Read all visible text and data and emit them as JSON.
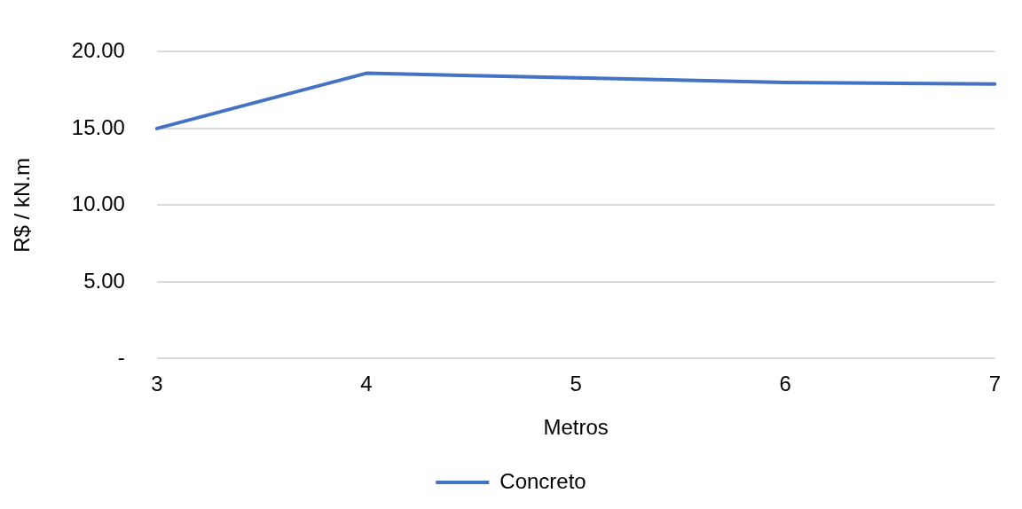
{
  "chart_data": {
    "type": "line",
    "xlabel": "Metros",
    "ylabel": "R$ / kN.m",
    "categories": [
      "3",
      "4",
      "5",
      "6",
      "7"
    ],
    "series": [
      {
        "name": "Concreto",
        "color": "#4472c4",
        "values": [
          15.0,
          18.6,
          18.3,
          18.0,
          17.9
        ]
      }
    ],
    "ylim": [
      0,
      20
    ],
    "yticks": [
      {
        "value": 0,
        "label": "-"
      },
      {
        "value": 5,
        "label": "5.00"
      },
      {
        "value": 10,
        "label": "10.00"
      },
      {
        "value": 15,
        "label": "15.00"
      },
      {
        "value": 20,
        "label": "20.00"
      }
    ],
    "grid": "y",
    "legend": "bottom",
    "marker": "none",
    "line_style": "solid"
  }
}
